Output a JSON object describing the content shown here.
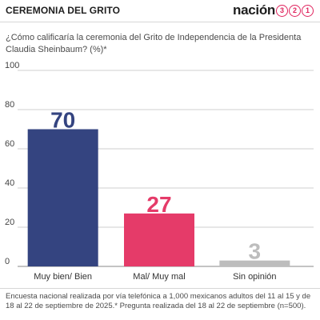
{
  "header": {
    "title": "CEREMONIA DEL GRITO",
    "brand_word": "nación",
    "brand_digits": [
      "3",
      "2",
      "1"
    ]
  },
  "colors": {
    "bar_good": "#344480",
    "bar_bad": "#e53b69",
    "bar_none": "#bdbdbd",
    "brand": "#e0245e"
  },
  "chart_data": {
    "type": "bar",
    "title": "¿Cómo calificaría la ceremonia del Grito de Independencia de la Presidenta Claudia Sheinbaum? (%)*",
    "categories": [
      "Muy bien/ Bien",
      "Mal/ Muy mal",
      "Sin opinión"
    ],
    "values": [
      70,
      27,
      3
    ],
    "value_labels": [
      "70",
      "27",
      "3"
    ],
    "ylim": [
      0,
      100
    ],
    "yticks": [
      0,
      20,
      40,
      60,
      80,
      100
    ],
    "ytick_labels": [
      "0",
      "20",
      "40",
      "60",
      "80",
      "100"
    ],
    "grid": true,
    "xlabel": "",
    "ylabel": ""
  },
  "footnote": "Encuesta nacional realizada por vía telefónica a 1,000 mexicanos adultos del 11 al 15 y de 18 al 22 de septiembre de 2025.* Pregunta realizada del 18 al 22 de septiembre (n=500)."
}
